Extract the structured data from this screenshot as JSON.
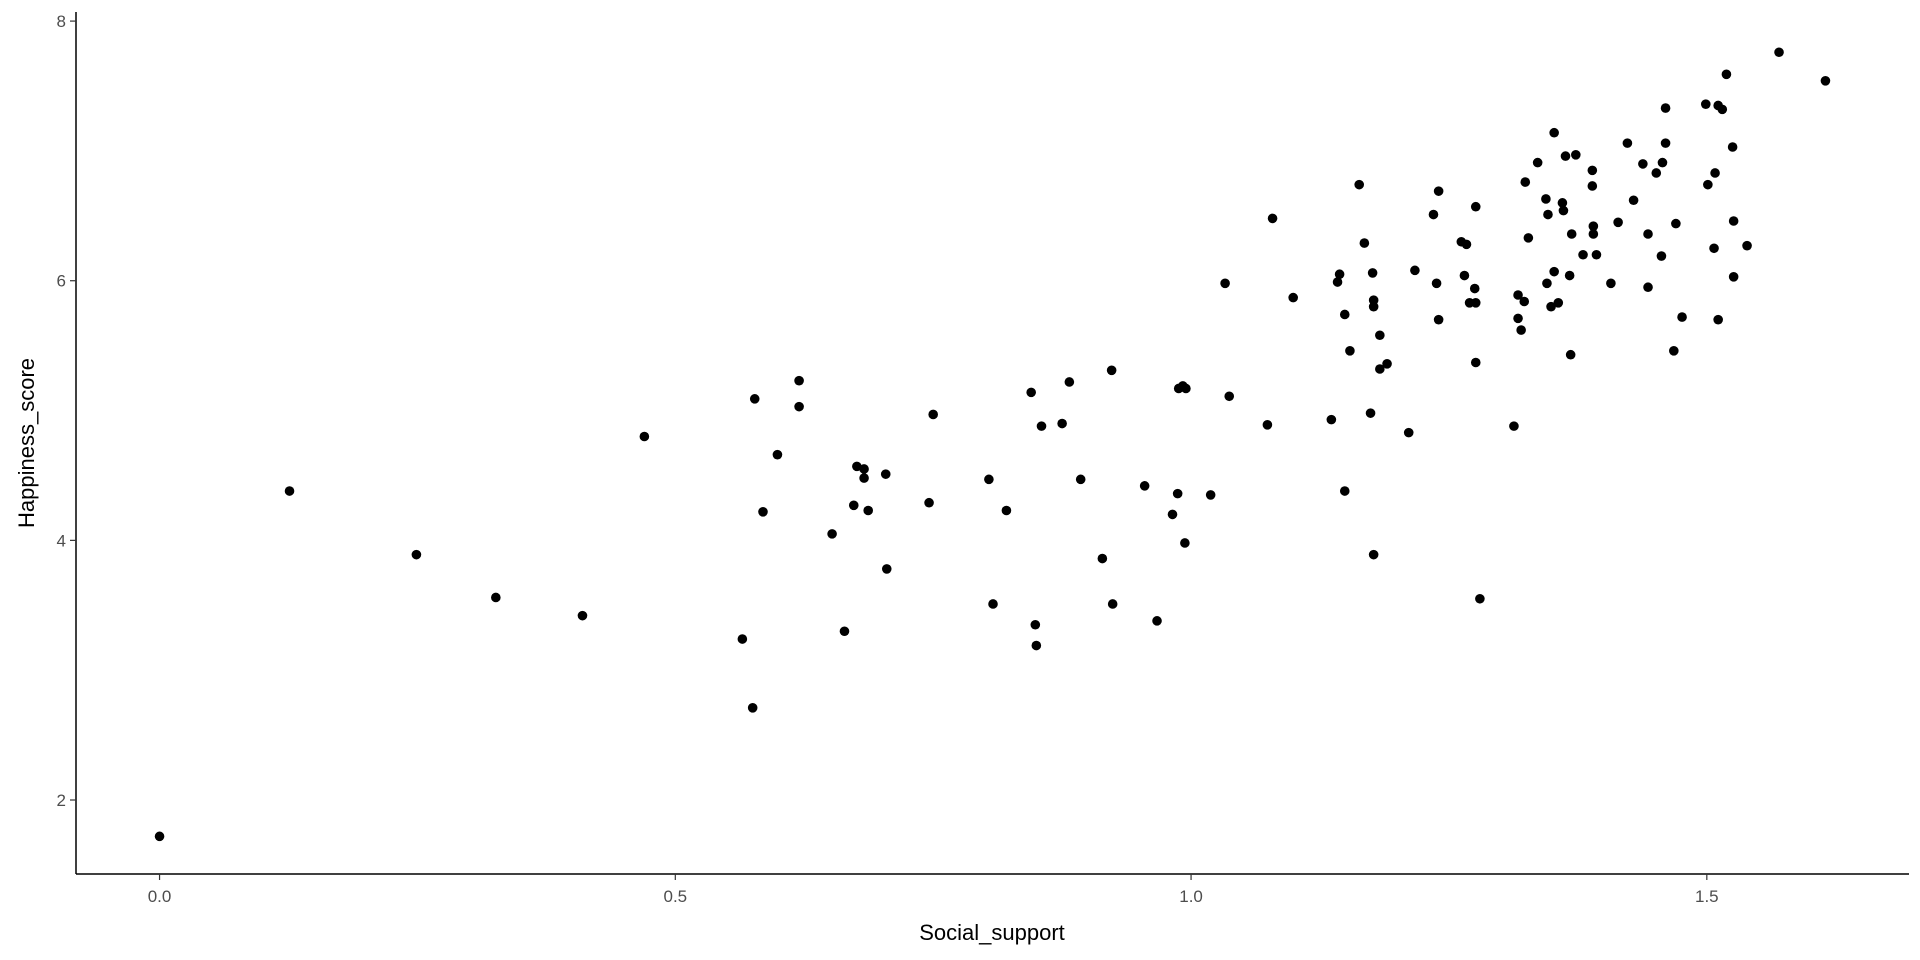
{
  "chart_data": {
    "type": "scatter",
    "x_label": "Social_support",
    "y_label": "Happiness_score",
    "color": "#000000",
    "x": [
      0,
      0.126,
      0.249,
      0.326,
      0.41,
      0.47,
      0.565,
      0.575,
      0.577,
      0.585,
      0.599,
      0.62,
      0.62,
      0.652,
      0.664,
      0.673,
      0.676,
      0.683,
      0.683,
      0.687,
      0.704,
      0.705,
      0.746,
      0.75,
      0.804,
      0.808,
      0.821,
      0.845,
      0.849,
      0.85,
      0.855,
      0.875,
      0.882,
      0.893,
      0.914,
      0.923,
      0.924,
      0.955,
      0.967,
      0.982,
      0.987,
      0.988,
      0.992,
      0.995,
      0.994,
      1.019,
      1.033,
      1.037,
      1.074,
      1.079,
      1.099,
      1.136,
      1.142,
      1.144,
      1.149,
      1.149,
      1.154,
      1.163,
      1.168,
      1.174,
      1.176,
      1.177,
      1.177,
      1.177,
      1.183,
      1.183,
      1.19,
      1.211,
      1.217,
      1.235,
      1.238,
      1.24,
      1.24,
      1.262,
      1.267,
      1.265,
      1.27,
      1.276,
      1.275,
      1.276,
      1.276,
      1.28,
      1.313,
      1.317,
      1.317,
      1.32,
      1.323,
      1.324,
      1.327,
      1.336,
      1.344,
      1.345,
      1.346,
      1.349,
      1.352,
      1.352,
      1.356,
      1.36,
      1.361,
      1.363,
      1.367,
      1.368,
      1.369,
      1.373,
      1.38,
      1.389,
      1.389,
      1.39,
      1.39,
      1.393,
      1.407,
      1.414,
      1.423,
      1.429,
      1.438,
      1.443,
      1.443,
      1.451,
      1.456,
      1.457,
      1.46,
      1.46,
      1.468,
      1.47,
      1.476,
      1.499,
      1.501,
      1.507,
      1.508,
      1.511,
      1.511,
      1.515,
      1.519,
      1.525,
      1.526,
      1.526,
      1.539,
      1.57,
      1.615
    ],
    "values": [
      1.72,
      4.38,
      3.89,
      3.56,
      3.42,
      4.8,
      3.24,
      2.71,
      5.09,
      4.22,
      4.66,
      5.23,
      5.03,
      4.05,
      3.3,
      4.27,
      4.57,
      4.55,
      4.48,
      4.23,
      4.51,
      3.78,
      4.29,
      4.97,
      4.47,
      3.51,
      4.23,
      5.14,
      3.35,
      3.19,
      4.88,
      4.9,
      5.22,
      4.47,
      3.86,
      5.31,
      3.51,
      4.42,
      3.38,
      4.2,
      4.36,
      5.17,
      5.19,
      5.17,
      3.98,
      4.35,
      5.98,
      5.11,
      4.89,
      6.48,
      5.87,
      4.93,
      5.99,
      6.05,
      5.74,
      4.38,
      5.46,
      6.74,
      6.29,
      4.98,
      6.06,
      5.85,
      5.8,
      3.89,
      5.58,
      5.32,
      5.36,
      4.83,
      6.08,
      6.51,
      5.98,
      6.69,
      5.7,
      6.3,
      6.28,
      6.04,
      5.83,
      5.83,
      5.94,
      6.57,
      5.37,
      3.55,
      4.88,
      5.89,
      5.71,
      5.62,
      5.84,
      6.76,
      6.33,
      6.91,
      6.63,
      5.98,
      6.51,
      5.8,
      7.14,
      6.07,
      5.83,
      6.6,
      6.54,
      6.96,
      6.04,
      5.43,
      6.36,
      6.97,
      6.2,
      6.85,
      6.73,
      6.42,
      6.36,
      6.2,
      5.98,
      6.45,
      7.06,
      6.62,
      6.9,
      6.36,
      5.95,
      6.83,
      6.19,
      6.91,
      7.33,
      7.06,
      5.46,
      6.44,
      5.72,
      7.36,
      6.74,
      6.25,
      6.83,
      7.35,
      5.7,
      7.32,
      7.59,
      7.03,
      6.46,
      6.03,
      6.27,
      7.76,
      7.54
    ],
    "xlim": [
      -0.081,
      1.696
    ],
    "ylim": [
      1.43,
      8.07
    ],
    "xticks": [
      {
        "value": 0,
        "label": "0.0"
      },
      0.5,
      {
        "value": 1,
        "label": "1.0"
      },
      1.5
    ],
    "yticks": [
      2,
      4,
      6,
      8
    ]
  }
}
